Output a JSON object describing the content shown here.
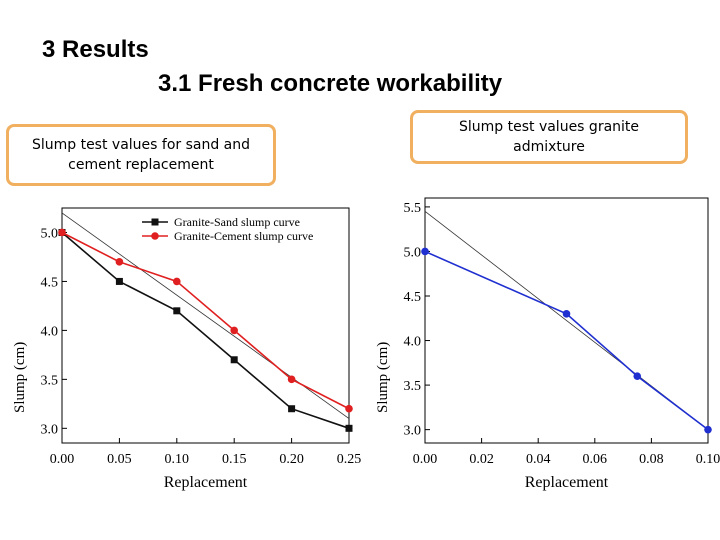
{
  "slide": {
    "title1": "3 Results",
    "title2": "3.1 Fresh concrete workability"
  },
  "callouts": {
    "left": "Slump test values for sand and cement replacement",
    "right": "Slump test values granite admixture"
  },
  "colors": {
    "callout_border": "#f0b060",
    "black_series": "#111111",
    "red_series": "#e02020",
    "blue_series": "#2030d0",
    "trend_line": "#333333"
  },
  "chart_data": [
    {
      "type": "line",
      "xlabel": "Replacement",
      "ylabel": "Slump (cm)",
      "x": [
        0.0,
        0.05,
        0.1,
        0.15,
        0.2,
        0.25
      ],
      "xticks": [
        "0.00",
        "0.05",
        "0.10",
        "0.15",
        "0.20",
        "0.25"
      ],
      "yticks": [
        "3.0",
        "3.5",
        "4.0",
        "4.5",
        "5.0"
      ],
      "xlim": [
        0.0,
        0.25
      ],
      "ylim": [
        2.85,
        5.25
      ],
      "legend": "top-right",
      "grid": false,
      "series": [
        {
          "name": "Granite-Sand slump curve",
          "color": "#111111",
          "marker": "square",
          "values": [
            5.0,
            4.5,
            4.2,
            3.7,
            3.2,
            3.0
          ]
        },
        {
          "name": "Granite-Cement slump curve",
          "color": "#e02020",
          "marker": "circle",
          "values": [
            5.0,
            4.7,
            4.5,
            4.0,
            3.5,
            3.2
          ]
        }
      ],
      "trend": {
        "x": [
          0.0,
          0.25
        ],
        "y": [
          5.2,
          3.1
        ]
      }
    },
    {
      "type": "line",
      "xlabel": "Replacement",
      "ylabel": "Slump (cm)",
      "x": [
        0.0,
        0.05,
        0.075,
        0.1
      ],
      "xticks": [
        "0.00",
        "0.02",
        "0.04",
        "0.06",
        "0.08",
        "0.10"
      ],
      "yticks": [
        "3.0",
        "3.5",
        "4.0",
        "4.5",
        "5.0",
        "5.5"
      ],
      "xlim": [
        0.0,
        0.1
      ],
      "ylim": [
        2.85,
        5.6
      ],
      "legend": "none",
      "grid": false,
      "series": [
        {
          "color": "#2030d0",
          "marker": "circle",
          "values": [
            5.0,
            4.3,
            3.6,
            3.0
          ]
        }
      ],
      "trend": {
        "x": [
          0.0,
          0.1
        ],
        "y": [
          5.45,
          3.0
        ]
      }
    }
  ]
}
